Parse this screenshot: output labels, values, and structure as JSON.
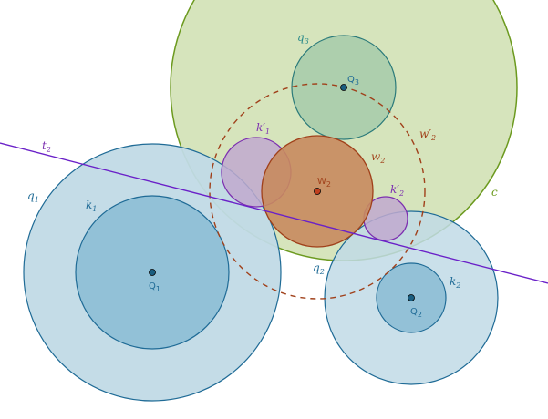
{
  "colors": {
    "c_fill": "#d6e4bc",
    "c_stroke": "#6c9a1f",
    "q_fill": "#c1dae6",
    "q_stroke": "#1f6b96",
    "k_fill": "#8fbfd6",
    "k_stroke": "#1f6b96",
    "q3_fill": "#a9ccab",
    "q3_stroke": "#2b7a7a",
    "w2_fill": "#c8895e",
    "w2_stroke": "#a0401a",
    "kp_fill": "#c1a9cf",
    "kp_stroke": "#7c2fb0",
    "dashed": "#a0401a",
    "line_t2": "#6a20c8",
    "point_fill": "#1a5e80",
    "point_w2": "#c0401f",
    "label_blue": "#1f6b96",
    "label_green": "#2b8a8a",
    "label_olive": "#6c9a1f",
    "label_purple": "#7c2fb0",
    "label_brown": "#a0401a"
  },
  "labels": {
    "t2": {
      "base": "t",
      "sub": "2"
    },
    "q1": {
      "base": "q",
      "sub": "1"
    },
    "k1": {
      "base": "k",
      "sub": "1"
    },
    "q3": {
      "base": "q",
      "sub": "3"
    },
    "kp1": {
      "base": "k′",
      "sub": "1"
    },
    "w2": {
      "base": "w",
      "sub": "2"
    },
    "wp2": {
      "base": "w′",
      "sub": "2"
    },
    "c": {
      "base": "c"
    },
    "kp2": {
      "base": "k′",
      "sub": "2"
    },
    "q2": {
      "base": "q",
      "sub": "2"
    },
    "k2": {
      "base": "k",
      "sub": "2"
    }
  },
  "points": {
    "Q1": {
      "base": "Q",
      "sub": "1"
    },
    "Q2": {
      "base": "Q",
      "sub": "2"
    },
    "Q3": {
      "base": "Q",
      "sub": "3"
    },
    "W2": {
      "base": "W",
      "sub": "2"
    }
  }
}
